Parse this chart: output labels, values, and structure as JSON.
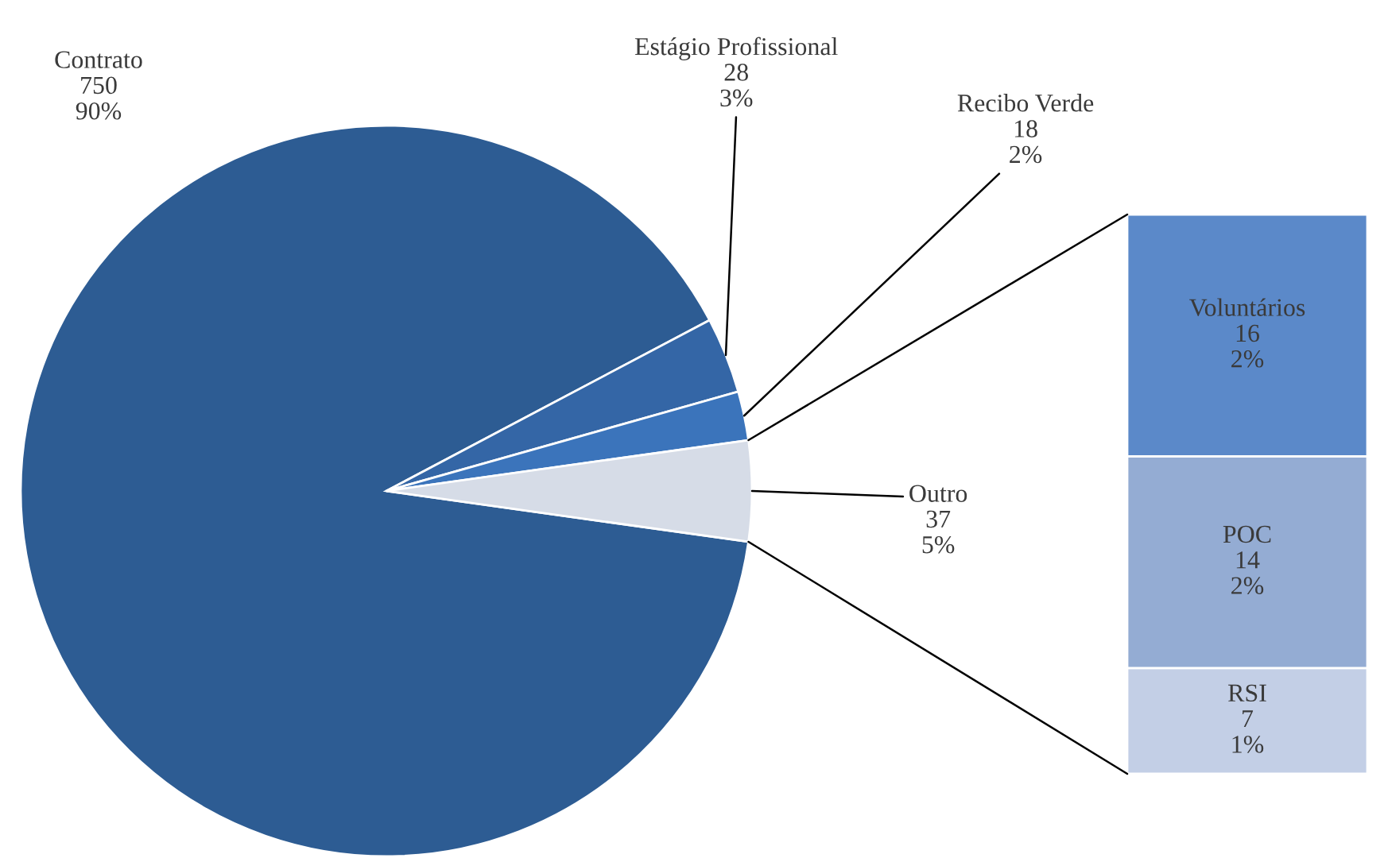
{
  "chart_data": [
    {
      "type": "pie",
      "categories": [
        "Contrato",
        "Estágio Profissional",
        "Recibo Verde",
        "Outro"
      ],
      "values": [
        750,
        28,
        18,
        37
      ],
      "colors": [
        "#2d5c93",
        "#3466a6",
        "#3b74bb",
        "#d6dce7"
      ],
      "value_labels": [
        "750\n90%",
        "28\n3%",
        "18\n2%",
        "37\n5%"
      ]
    },
    {
      "type": "bar",
      "stacked": true,
      "categories": [
        null
      ],
      "series": [
        {
          "name": "RSI",
          "color": "#c3cfe6",
          "values": [
            7
          ],
          "value_labels": [
            "7\n1%"
          ]
        },
        {
          "name": "POC",
          "color": "#94acd3",
          "values": [
            14
          ],
          "value_labels": [
            "14\n2%"
          ]
        },
        {
          "name": "Voluntários",
          "color": "#5b89c9",
          "values": [
            16
          ],
          "value_labels": [
            "16\n2%"
          ]
        }
      ]
    }
  ]
}
